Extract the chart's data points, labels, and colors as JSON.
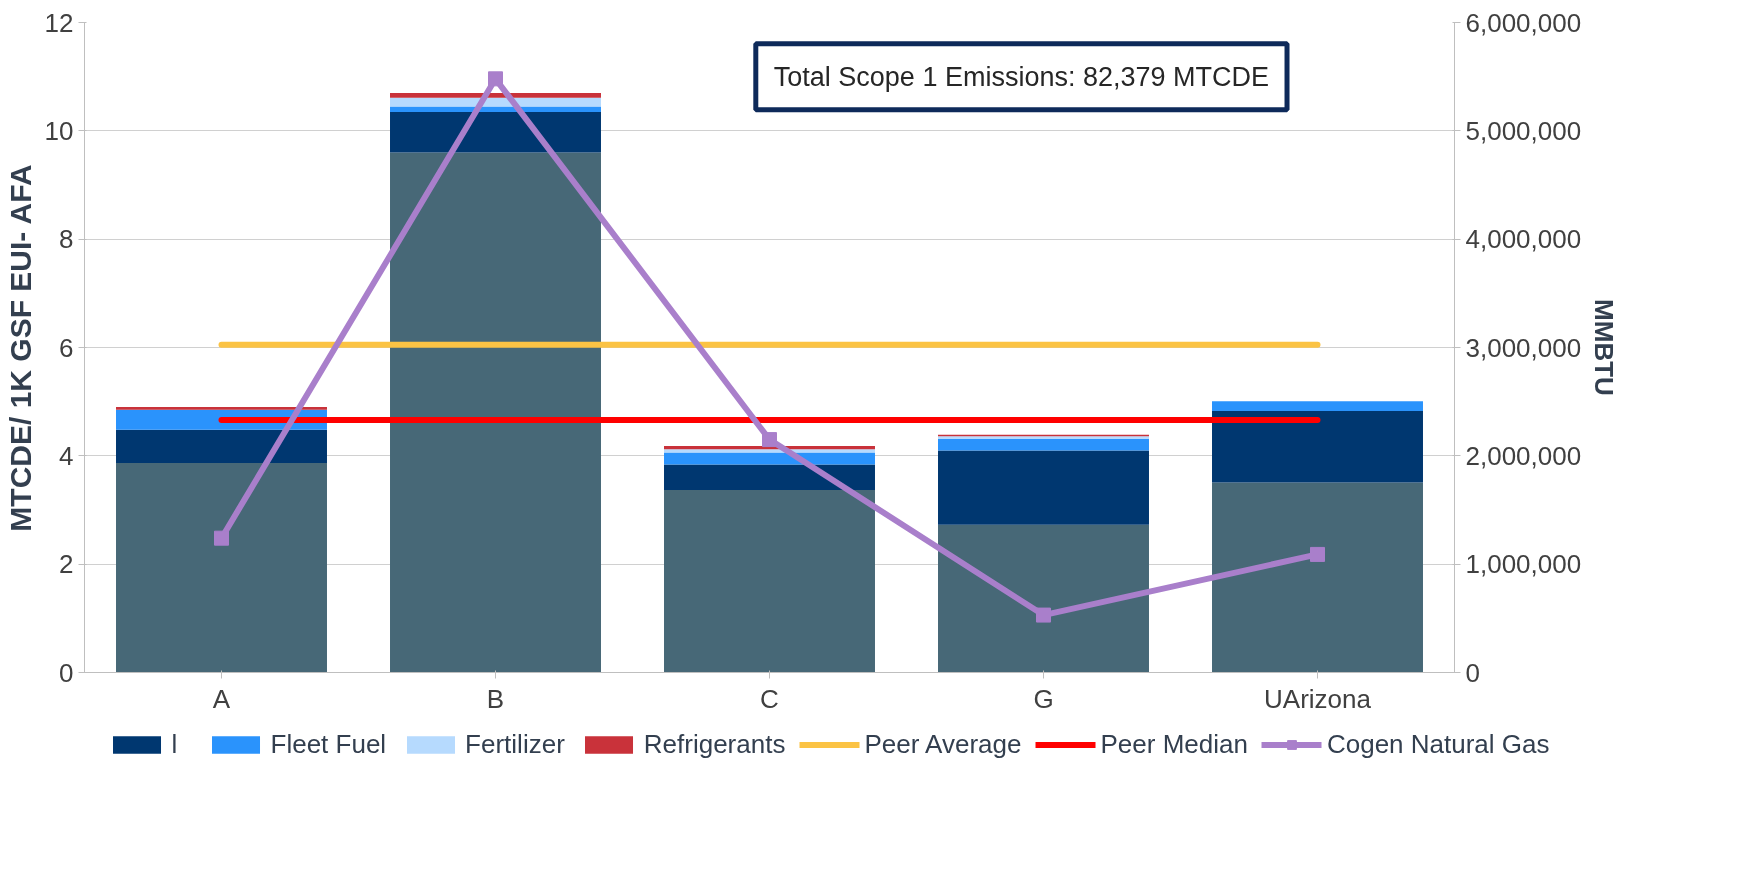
{
  "chart_data": {
    "type": "bar",
    "stacked": true,
    "categories": [
      "A",
      "B",
      "C",
      "G",
      "UArizona"
    ],
    "ylabel": "MTCDE/ 1K GSF EUI- AFA",
    "y2label": "MMBTU",
    "ylim": [
      0,
      12
    ],
    "yticks": [
      0,
      2,
      4,
      6,
      8,
      10,
      12
    ],
    "y2lim": [
      0,
      6000000
    ],
    "y2ticks": [
      {
        "value": 0,
        "label": "0"
      },
      {
        "value": 1000000,
        "label": "1,000,000"
      },
      {
        "value": 2000000,
        "label": "2,000,000"
      },
      {
        "value": 3000000,
        "label": "3,000,000"
      },
      {
        "value": 4000000,
        "label": "4,000,000"
      },
      {
        "value": 5000000,
        "label": "5,000,000"
      },
      {
        "value": 6000000,
        "label": "6,000,000"
      }
    ],
    "grid": "y",
    "legend": "bottom",
    "annotations": [
      "Total Scope 1 Emissions: 82,379 MTCDE"
    ],
    "series": [
      {
        "color": "#476877",
        "values": [
          3.87,
          9.6,
          3.37,
          2.73,
          3.51
        ]
      },
      {
        "name": "l",
        "color": "#003770",
        "values": [
          0.61,
          0.75,
          0.47,
          1.37,
          1.32
        ]
      },
      {
        "name": "Fleet Fuel",
        "color": "#2a93fc",
        "values": [
          0.37,
          0.1,
          0.22,
          0.21,
          0.18
        ]
      },
      {
        "name": "Fertilizer",
        "color": "#b6dafe",
        "values": [
          0,
          0.16,
          0.06,
          0.05,
          0
        ]
      },
      {
        "name": "Refrigerants",
        "color": "#c9323a",
        "values": [
          0.05,
          0.09,
          0.06,
          0.03,
          0
        ]
      },
      {
        "name": "Peer Average",
        "type": "line",
        "color": "#fbc344",
        "values": [
          6.05,
          6.05,
          6.05,
          6.05,
          6.05
        ]
      },
      {
        "name": "Peer Median",
        "type": "line",
        "color": "#ff0000",
        "values": [
          4.66,
          4.66,
          4.66,
          4.66,
          4.66
        ]
      },
      {
        "name": "Cogen Natural Gas",
        "type": "line",
        "axis": "y2",
        "marker": "square",
        "color": "#a97fcb",
        "values": [
          1240000,
          5480000,
          2150000,
          530000,
          1090000
        ]
      }
    ]
  }
}
